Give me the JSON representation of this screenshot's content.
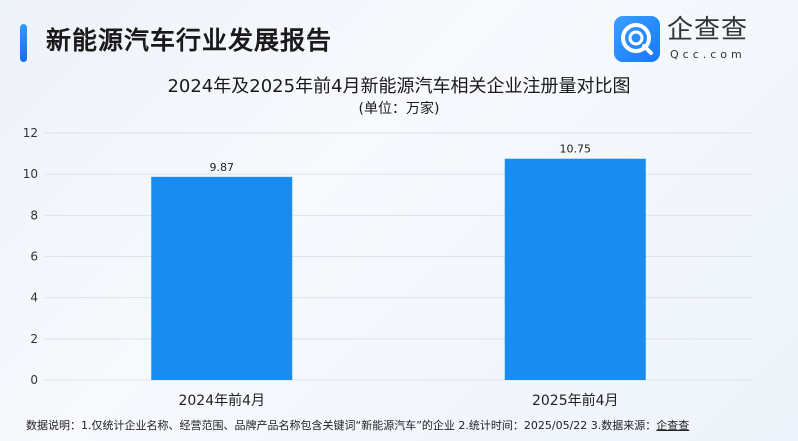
{
  "header": {
    "title": "新能源汽车行业发展报告",
    "logo_text": "企查查",
    "logo_sub": "Qcc.com",
    "accent_color": "#1f86f0"
  },
  "chart_data": {
    "type": "bar",
    "title": "2024年及2025年前4月新能源汽车相关企业注册量对比图",
    "subtitle": "(单位：万家)",
    "categories": [
      "2024年前4月",
      "2025年前4月"
    ],
    "values": [
      9.87,
      10.75
    ],
    "value_labels": [
      "9.87",
      "10.75"
    ],
    "ylim": [
      0,
      12
    ],
    "yticks": [
      0,
      2,
      4,
      6,
      8,
      10,
      12
    ],
    "grid": true,
    "bar_color": "#1a8cf0",
    "xlabel": "",
    "ylabel": ""
  },
  "footer": {
    "note": "数据说明：1.仅统计企业名称、经营范围、品牌产品名称包含关键词“新能源汽车”的企业  2.统计时间：2025/05/22   3.数据来源：",
    "source": "企查查"
  }
}
